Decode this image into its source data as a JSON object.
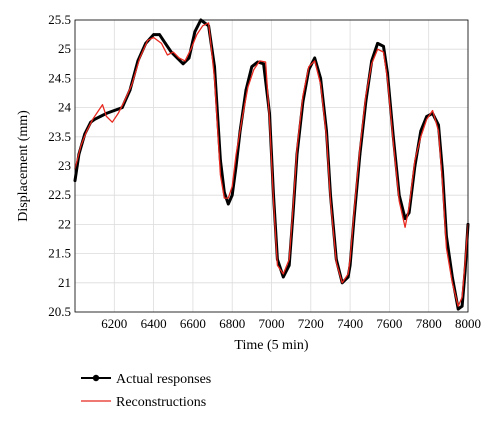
{
  "chart_data": {
    "type": "line",
    "title": "",
    "xlabel": "Time (5 min)",
    "ylabel": "Displacement (mm)",
    "xlim": [
      6000,
      8000
    ],
    "ylim": [
      20.5,
      25.5
    ],
    "xticks": [
      6200,
      6400,
      6600,
      6800,
      7000,
      7200,
      7400,
      7600,
      7800,
      8000
    ],
    "yticks": [
      20.5,
      21,
      21.5,
      22,
      22.5,
      23,
      23.5,
      24,
      24.5,
      25,
      25.5
    ],
    "grid": true,
    "legend_position": "bottom-left",
    "series": [
      {
        "name": "Actual responses",
        "color": "#000000",
        "marker": "dot",
        "x": [
          6000,
          6020,
          6050,
          6080,
          6100,
          6130,
          6160,
          6200,
          6240,
          6280,
          6320,
          6360,
          6400,
          6430,
          6460,
          6490,
          6520,
          6550,
          6580,
          6610,
          6640,
          6660,
          6680,
          6710,
          6740,
          6760,
          6780,
          6800,
          6820,
          6840,
          6870,
          6900,
          6930,
          6960,
          6990,
          7010,
          7030,
          7060,
          7090,
          7110,
          7130,
          7160,
          7190,
          7220,
          7250,
          7280,
          7300,
          7330,
          7360,
          7390,
          7400,
          7420,
          7450,
          7480,
          7510,
          7540,
          7570,
          7590,
          7620,
          7650,
          7680,
          7700,
          7730,
          7760,
          7790,
          7820,
          7850,
          7870,
          7890,
          7920,
          7950,
          7970,
          7985,
          8000
        ],
        "y": [
          22.75,
          23.2,
          23.55,
          23.75,
          23.8,
          23.85,
          23.9,
          23.95,
          24.0,
          24.3,
          24.8,
          25.1,
          25.25,
          25.25,
          25.1,
          24.95,
          24.85,
          24.75,
          24.85,
          25.3,
          25.5,
          25.45,
          25.4,
          24.7,
          23.1,
          22.55,
          22.35,
          22.5,
          23.0,
          23.6,
          24.3,
          24.7,
          24.78,
          24.75,
          23.9,
          22.5,
          21.4,
          21.1,
          21.3,
          22.2,
          23.2,
          24.1,
          24.65,
          24.85,
          24.5,
          23.6,
          22.5,
          21.4,
          21.0,
          21.1,
          21.3,
          22.1,
          23.2,
          24.1,
          24.8,
          25.1,
          25.05,
          24.6,
          23.5,
          22.5,
          22.1,
          22.2,
          23.0,
          23.6,
          23.85,
          23.9,
          23.7,
          22.9,
          21.8,
          21.1,
          20.55,
          20.6,
          21.2,
          22.0
        ]
      },
      {
        "name": "Reconstructions",
        "color": "#e8281e",
        "marker": "none",
        "x": [
          6000,
          6030,
          6060,
          6090,
          6120,
          6140,
          6160,
          6190,
          6220,
          6250,
          6290,
          6330,
          6370,
          6400,
          6440,
          6470,
          6500,
          6530,
          6560,
          6590,
          6620,
          6650,
          6680,
          6710,
          6740,
          6760,
          6780,
          6800,
          6820,
          6850,
          6880,
          6910,
          6940,
          6970,
          6990,
          7010,
          7030,
          7060,
          7090,
          7110,
          7130,
          7160,
          7190,
          7220,
          7250,
          7280,
          7300,
          7330,
          7360,
          7390,
          7400,
          7420,
          7450,
          7480,
          7510,
          7540,
          7570,
          7590,
          7620,
          7650,
          7680,
          7700,
          7730,
          7760,
          7790,
          7820,
          7850,
          7870,
          7890,
          7920,
          7950,
          7970,
          7985,
          8000
        ],
        "y": [
          22.95,
          23.35,
          23.6,
          23.8,
          23.95,
          24.05,
          23.85,
          23.75,
          23.9,
          24.1,
          24.4,
          24.85,
          25.15,
          25.2,
          25.1,
          24.9,
          24.95,
          24.85,
          24.8,
          25.0,
          25.25,
          25.4,
          25.45,
          24.5,
          22.85,
          22.45,
          22.45,
          22.65,
          23.2,
          23.8,
          24.35,
          24.65,
          24.8,
          24.78,
          23.8,
          22.4,
          21.3,
          21.15,
          21.4,
          22.3,
          23.3,
          24.2,
          24.7,
          24.8,
          24.4,
          23.5,
          22.4,
          21.35,
          21.0,
          21.15,
          21.4,
          22.2,
          23.3,
          24.2,
          24.75,
          25.0,
          24.95,
          24.5,
          23.4,
          22.4,
          21.95,
          22.3,
          23.1,
          23.5,
          23.8,
          23.95,
          23.6,
          22.7,
          21.6,
          21.0,
          20.6,
          20.75,
          21.35,
          22.0
        ]
      }
    ]
  }
}
